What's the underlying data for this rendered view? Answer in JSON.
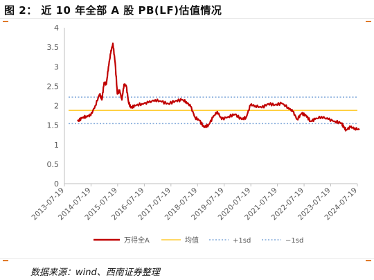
{
  "title": "图 2： 近 10 年全部 A 股 PB(LF)估值情况",
  "source": "数据来源：wind、西南证券整理",
  "chart_data": {
    "type": "line",
    "title": "",
    "xlabel": "",
    "ylabel": "",
    "ylim": [
      0,
      4
    ],
    "yticks": [
      "0",
      "0.5",
      "1",
      "1.5",
      "2",
      "2.5",
      "3",
      "3.5",
      "4"
    ],
    "xticks": [
      "2013-07-19",
      "2014-07-19",
      "2015-07-19",
      "2016-07-19",
      "2017-07-19",
      "2018-07-19",
      "2019-07-19",
      "2020-07-19",
      "2021-07-19",
      "2022-07-19",
      "2023-07-19",
      "2024-07-19"
    ],
    "grid": false,
    "legend_position": "bottom",
    "series": [
      {
        "name": "万得全A",
        "color": "#c00000",
        "x": [
          "2014-01",
          "2014-03",
          "2014-05",
          "2014-07",
          "2014-09",
          "2014-11",
          "2014-12",
          "2015-01",
          "2015-02",
          "2015-03",
          "2015-04",
          "2015-05",
          "2015-06",
          "2015-07",
          "2015-08",
          "2015-09",
          "2015-10",
          "2015-11",
          "2015-12",
          "2016-01",
          "2016-03",
          "2016-06",
          "2016-09",
          "2016-12",
          "2017-03",
          "2017-06",
          "2017-09",
          "2017-12",
          "2018-02",
          "2018-04",
          "2018-06",
          "2018-08",
          "2018-10",
          "2018-12",
          "2019-02",
          "2019-04",
          "2019-06",
          "2019-09",
          "2019-12",
          "2020-03",
          "2020-05",
          "2020-07",
          "2020-09",
          "2020-12",
          "2021-03",
          "2021-06",
          "2021-09",
          "2021-12",
          "2022-02",
          "2022-04",
          "2022-06",
          "2022-08",
          "2022-10",
          "2022-12",
          "2023-03",
          "2023-06",
          "2023-09",
          "2023-12",
          "2024-01",
          "2024-02",
          "2024-04",
          "2024-06",
          "2024-08"
        ],
        "values": [
          1.6,
          1.68,
          1.73,
          1.75,
          2.0,
          2.3,
          2.15,
          2.6,
          2.55,
          3.0,
          3.35,
          3.6,
          3.1,
          2.3,
          2.4,
          2.15,
          2.55,
          2.5,
          2.1,
          1.95,
          2.0,
          2.05,
          2.08,
          2.15,
          2.1,
          2.05,
          2.12,
          2.15,
          2.1,
          1.98,
          1.7,
          1.62,
          1.45,
          1.5,
          1.7,
          1.85,
          1.65,
          1.72,
          1.78,
          1.65,
          1.7,
          2.02,
          2.0,
          1.95,
          2.05,
          2.02,
          2.06,
          1.95,
          1.85,
          1.65,
          1.8,
          1.75,
          1.6,
          1.65,
          1.72,
          1.65,
          1.6,
          1.55,
          1.45,
          1.38,
          1.45,
          1.42,
          1.38
        ]
      },
      {
        "name": "均值",
        "color": "#ffcc33",
        "value": 1.88
      },
      {
        "name": "+1sd",
        "color": "#7fa7d9",
        "value": 2.22
      },
      {
        "name": "−1sd",
        "color": "#7fa7d9",
        "value": 1.54
      }
    ]
  }
}
